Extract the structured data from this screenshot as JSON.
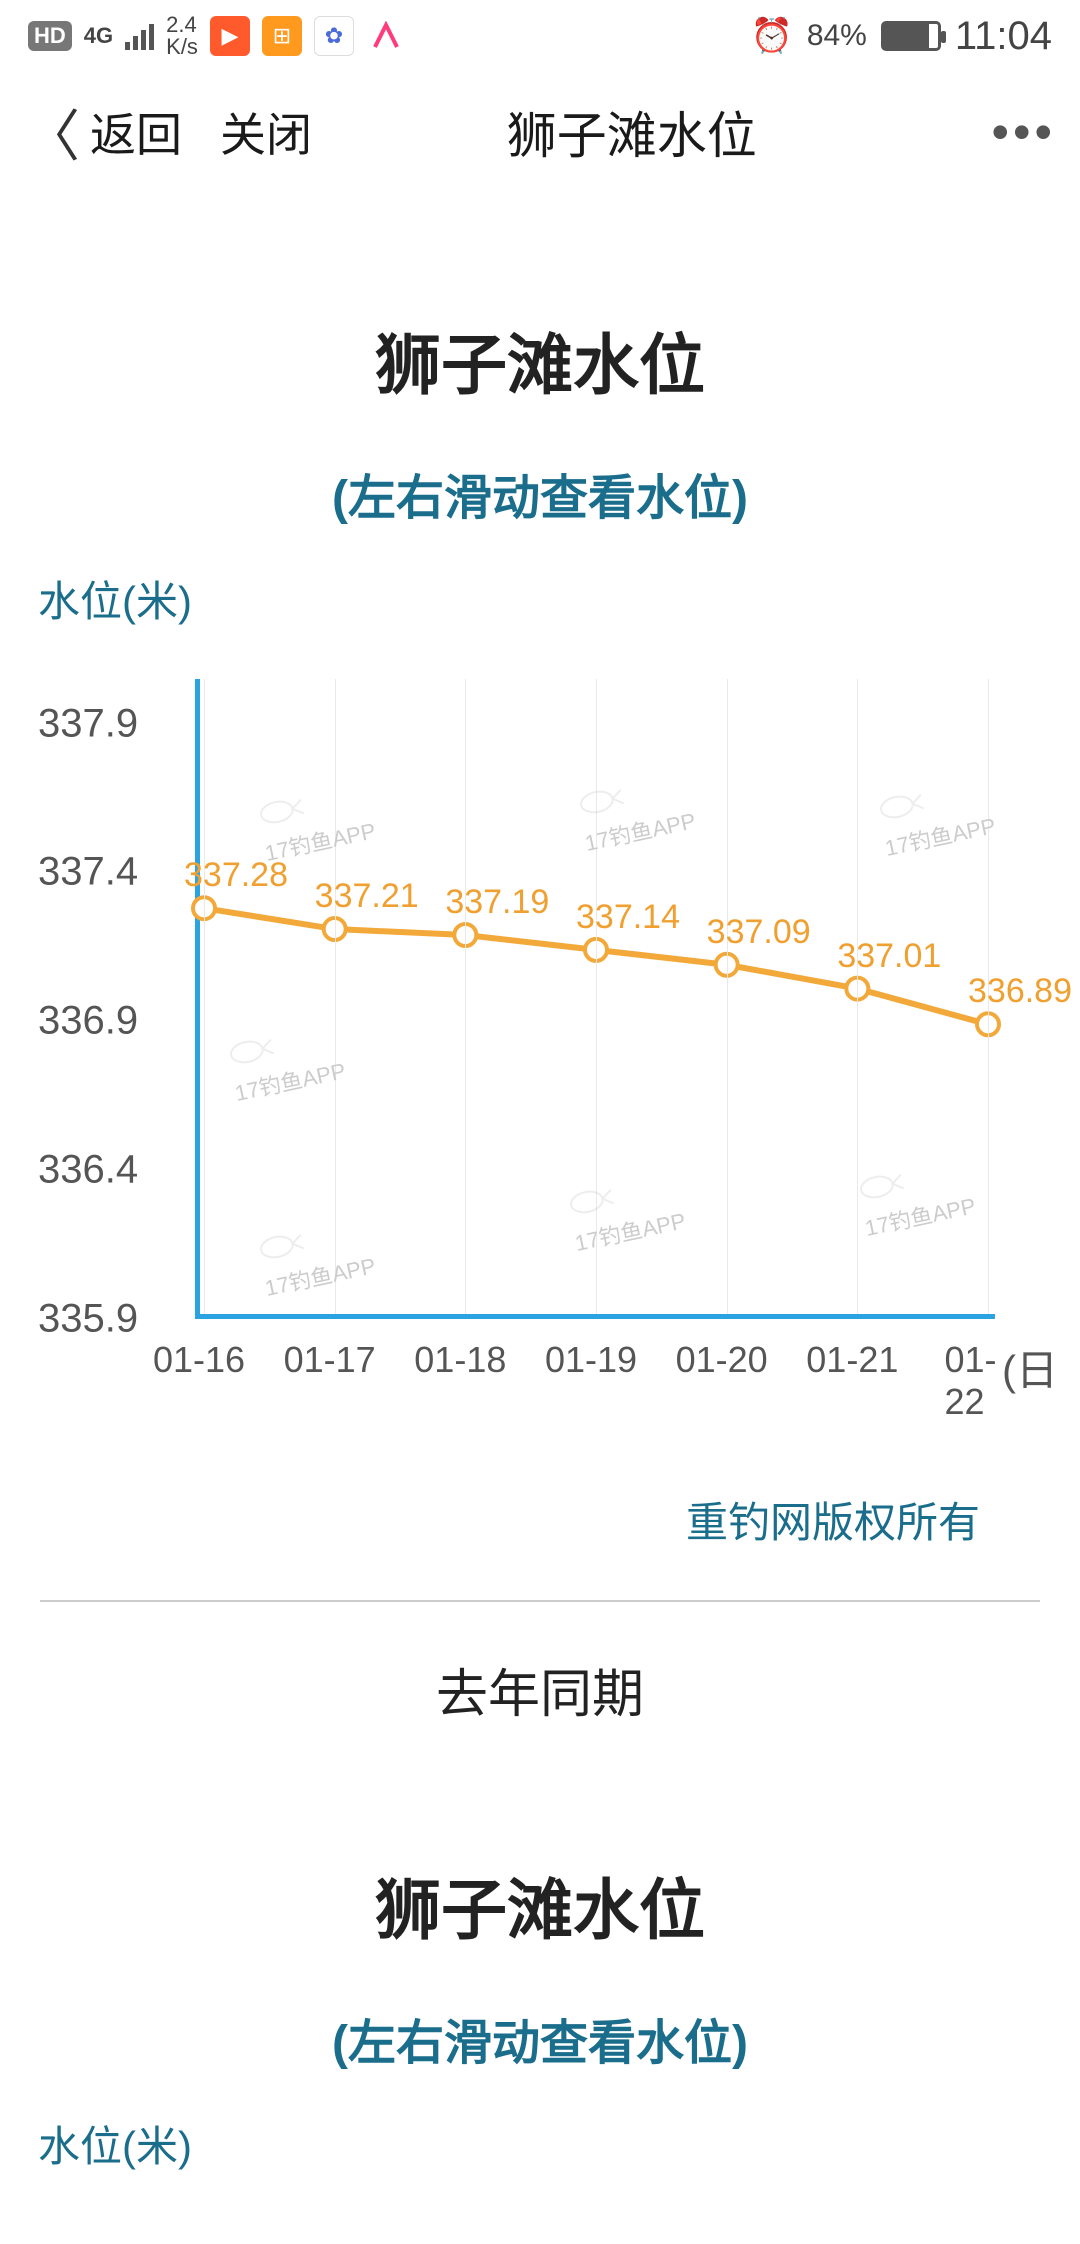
{
  "status": {
    "hd": "HD",
    "net": "4G",
    "speed_top": "2.4",
    "speed_bot": "K/s",
    "battery_pct": "84%",
    "time": "11:04",
    "battery_fill_pct": 84,
    "app_colors": [
      "#ff5a2b",
      "#ff9a1f",
      "#4a6bd8",
      "#3aa0ff"
    ]
  },
  "nav": {
    "back": "返回",
    "close": "关闭",
    "title": "狮子滩水位"
  },
  "page": {
    "title": "狮子滩水位",
    "subtitle": "(左右滑动查看水位)",
    "ylabel": "水位(米)",
    "copyright": "重钓网版权所有",
    "section2": "去年同期",
    "title2": "狮子滩水位",
    "subtitle2": "(左右滑动查看水位)",
    "ylabel2": "水位(米)"
  },
  "chart": {
    "type": "line",
    "x_labels": [
      "01-16",
      "01-17",
      "01-18",
      "01-19",
      "01-20",
      "01-21",
      "01-22"
    ],
    "x_unit": "(日",
    "values": [
      337.28,
      337.21,
      337.19,
      337.14,
      337.09,
      337.01,
      336.89
    ],
    "value_labels": [
      "337.28",
      "337.21",
      "337.19",
      "337.14",
      "337.09",
      "337.01",
      "336.89"
    ],
    "ylim": [
      335.9,
      338.05
    ],
    "yticks": [
      335.9,
      336.4,
      336.9,
      337.4,
      337.9
    ],
    "ytick_labels": [
      "335.9",
      "336.4",
      "336.9",
      "337.4",
      "337.9"
    ],
    "line_color": "#f3a93a",
    "marker_fill": "#ffffff",
    "marker_stroke": "#f3a93a",
    "marker_r": 11,
    "line_width": 6,
    "axis_color": "#2aa3e0",
    "grid_color": "#e9e9e9",
    "bg": "#ffffff",
    "label_color": "#f0a030",
    "watermark_text": "17钓鱼APP"
  }
}
